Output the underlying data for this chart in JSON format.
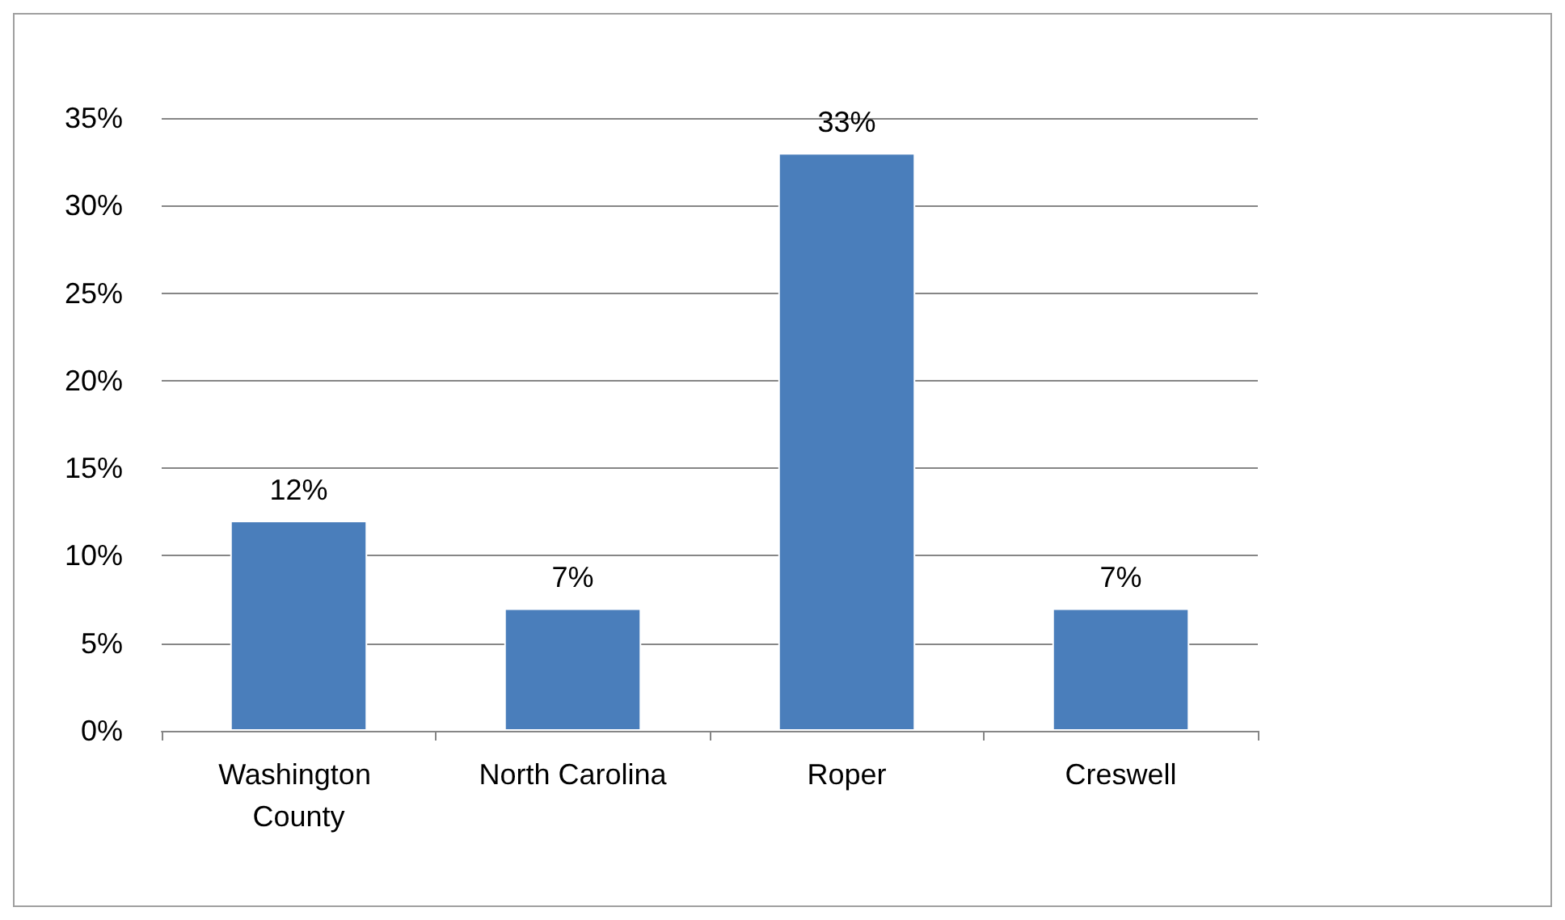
{
  "chart_data": {
    "type": "bar",
    "categories": [
      "Washington County",
      "North Carolina",
      "Roper",
      "Creswell"
    ],
    "values": [
      12,
      7,
      33,
      7
    ],
    "color": "#4a7ebb",
    "value_labels": [
      "12%",
      "7%",
      "33%",
      "7%"
    ],
    "ylim": [
      0,
      35
    ],
    "yticks": [
      {
        "value": 0,
        "label": "0%"
      },
      {
        "value": 5,
        "label": "5%"
      },
      {
        "value": 10,
        "label": "10%"
      },
      {
        "value": 15,
        "label": "15%"
      },
      {
        "value": 20,
        "label": "20%"
      },
      {
        "value": 25,
        "label": "25%"
      },
      {
        "value": 30,
        "label": "30%"
      },
      {
        "value": 35,
        "label": "35%"
      }
    ],
    "grid": "y"
  }
}
